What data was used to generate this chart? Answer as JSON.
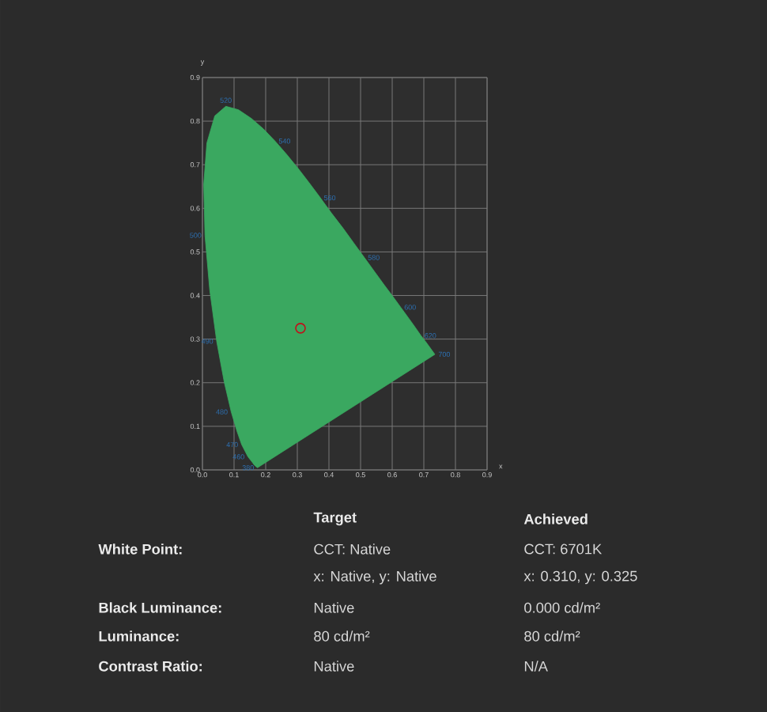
{
  "chart_data": {
    "type": "scatter",
    "xlabel": "x",
    "ylabel": "y",
    "xlim": [
      0,
      0.9
    ],
    "ylim": [
      0,
      0.9
    ],
    "xticks": [
      {
        "value": 0,
        "label": "0.0"
      },
      0.1,
      0.2,
      0.3,
      0.4,
      0.5,
      0.6,
      0.7,
      0.8,
      0.9
    ],
    "yticks": [
      {
        "value": 0,
        "label": "0.0"
      },
      0.1,
      0.2,
      0.3,
      0.4,
      0.5,
      0.6,
      0.7,
      0.8,
      0.9
    ],
    "grid": true,
    "series": [
      {
        "type": "area",
        "color": "#3aa860",
        "x": [
          0.174,
          0.164,
          0.157,
          0.144,
          0.124,
          0.11,
          0.091,
          0.069,
          0.045,
          0.023,
          0.008,
          0.004,
          0.014,
          0.039,
          0.074,
          0.114,
          0.155,
          0.193,
          0.23,
          0.266,
          0.302,
          0.337,
          0.373,
          0.408,
          0.444,
          0.479,
          0.512,
          0.544,
          0.575,
          0.603,
          0.627,
          0.666,
          0.691,
          0.708,
          0.719,
          0.726,
          0.735
        ],
        "values": [
          0.005,
          0.011,
          0.018,
          0.03,
          0.058,
          0.087,
          0.133,
          0.201,
          0.295,
          0.413,
          0.538,
          0.655,
          0.75,
          0.812,
          0.834,
          0.826,
          0.806,
          0.782,
          0.754,
          0.724,
          0.692,
          0.659,
          0.624,
          0.589,
          0.555,
          0.52,
          0.487,
          0.455,
          0.424,
          0.397,
          0.373,
          0.334,
          0.308,
          0.292,
          0.281,
          0.274,
          0.265
        ]
      },
      {
        "color": "#c0101a",
        "marker": "circle",
        "x": [
          0.31
        ],
        "values": [
          0.325
        ]
      }
    ],
    "annotations": [
      {
        "text": "380",
        "x": 0.174,
        "y": 0.005
      },
      {
        "text": "460",
        "x": 0.144,
        "y": 0.03
      },
      {
        "text": "470",
        "x": 0.124,
        "y": 0.058
      },
      {
        "text": "480",
        "x": 0.091,
        "y": 0.133
      },
      {
        "text": "490",
        "x": 0.045,
        "y": 0.295
      },
      {
        "text": "500",
        "x": 0.008,
        "y": 0.538
      },
      {
        "text": "520",
        "x": 0.074,
        "y": 0.834
      },
      {
        "text": "540",
        "x": 0.23,
        "y": 0.754
      },
      {
        "text": "560",
        "x": 0.373,
        "y": 0.624
      },
      {
        "text": "580",
        "x": 0.512,
        "y": 0.487
      },
      {
        "text": "600",
        "x": 0.627,
        "y": 0.373
      },
      {
        "text": "620",
        "x": 0.691,
        "y": 0.308
      },
      {
        "text": "700",
        "x": 0.735,
        "y": 0.265
      },
      "Target",
      "Achieved",
      "White Point:",
      "CCT: Native",
      "CCT: 6701K",
      "x: Native, y: Native",
      "x: 0.310, y: 0.325",
      "Black Luminance:",
      "Native",
      "0.000 cd/m²",
      "Luminance:",
      "80 cd/m²",
      "80 cd/m²",
      "Contrast Ratio:",
      "Native",
      "N/A"
    ]
  }
}
